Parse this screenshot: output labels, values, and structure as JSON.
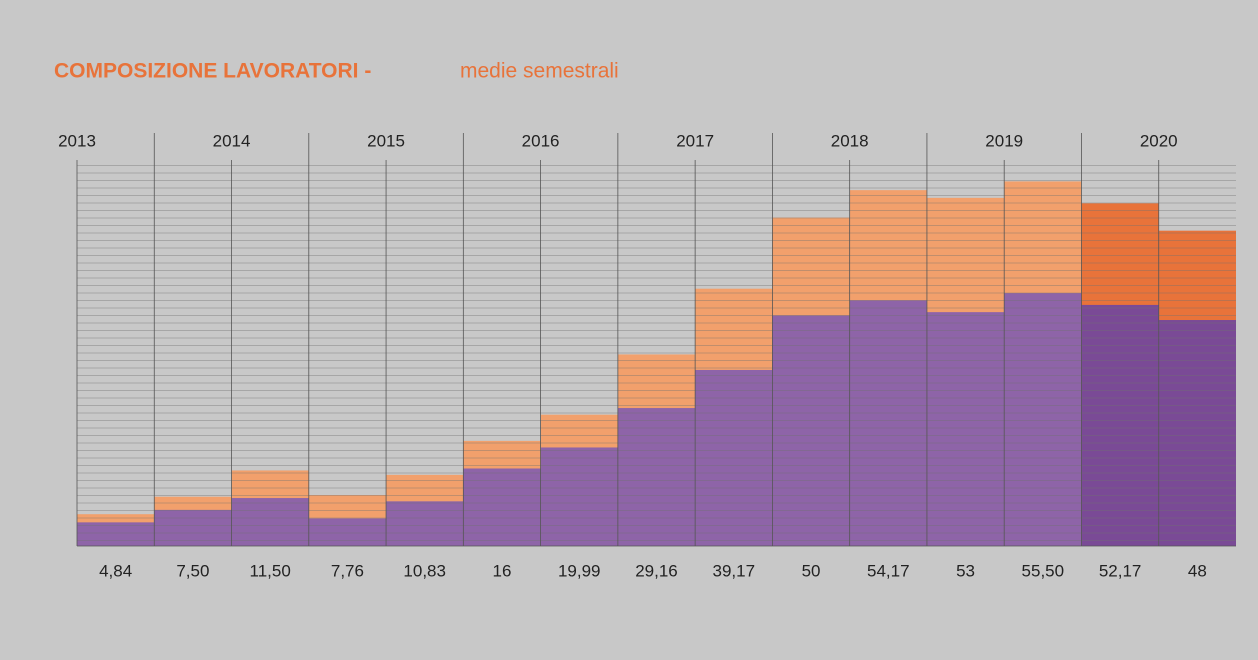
{
  "chart_data": {
    "type": "bar",
    "title": "COMPOSIZIONE LAVORATORI -",
    "subtitle": "medie semestrali",
    "year_labels": [
      "2013",
      "2014",
      "2015",
      "2016",
      "2017",
      "2018",
      "2019",
      "2020"
    ],
    "values": [
      4.84,
      7.5,
      11.5,
      7.76,
      10.83,
      16,
      19.99,
      29.16,
      39.17,
      50,
      54.17,
      53,
      55.5,
      52.17,
      48
    ],
    "value_labels": [
      "4,84",
      "7,50",
      "11,50",
      "7,76",
      "10,83",
      "16",
      "19,99",
      "29,16",
      "39,17",
      "50",
      "54,17",
      "53",
      "55,50",
      "52,17",
      "48"
    ],
    "colors": [
      "#f2a06c",
      "#f2a06c",
      "#f2a06c",
      "#f2a06c",
      "#f2a06c",
      "#f2a06c",
      "#f2a06c",
      "#f2a06c",
      "#f2a06c",
      "#f2a06c",
      "#f2a06c",
      "#f2a06c",
      "#f2a06c",
      "#e8733a",
      "#e8733a"
    ],
    "series": [
      {
        "colors": [
          "#8e64a8",
          "#8e64a8",
          "#8e64a8",
          "#8e64a8",
          "#8e64a8",
          "#8e64a8",
          "#8e64a8",
          "#8e64a8",
          "#8e64a8",
          "#8e64a8",
          "#8e64a8",
          "#8e64a8",
          "#8e64a8",
          "#7a4a96",
          "#7a4a96"
        ],
        "values": [
          3.6,
          5.5,
          7.3,
          4.2,
          6.8,
          11.8,
          15,
          21,
          26.8,
          35.1,
          37.4,
          35.6,
          38.5,
          36.7,
          34.4
        ]
      }
    ],
    "ylim": [
      0,
      58
    ]
  }
}
